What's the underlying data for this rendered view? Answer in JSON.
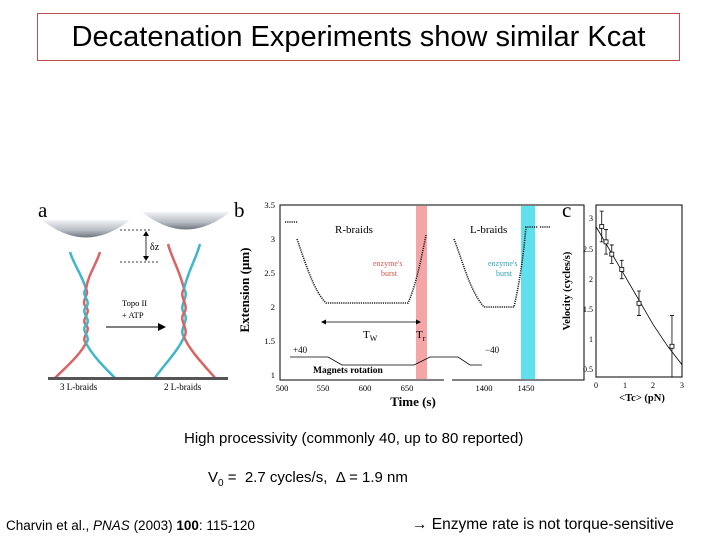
{
  "slide": {
    "title": "Decatenation Experiments show similar Kcat",
    "processivity": "High processivity (commonly 40, up to 80 reported)",
    "v_symbol": "V",
    "v_sub": "0",
    "v_value": " =  2.7 cycles/s,  ",
    "delta_symbol": "Δ",
    "delta_value": " = 1.9 nm",
    "citation_authors": "Charvin et al., ",
    "citation_journal": "PNAS",
    "citation_year": " (2003) ",
    "citation_volume": "100",
    "citation_pages": ": 115-120",
    "conclusion_arrow": "→",
    "conclusion_text": " Enzyme rate is not torque-sensitive"
  },
  "figure": {
    "panel_a": {
      "label": "a",
      "dz_label": "δz",
      "topo_label": "Topo II",
      "atp_label": "+ ATP",
      "left_braid_label": "3 L-braids",
      "right_braid_label": "2 L-braids",
      "colors": {
        "strand_red": "#d96464",
        "strand_blue": "#3fb7c9",
        "bead": "#8a8f99"
      }
    },
    "panel_b": {
      "label": "b",
      "ylabel": "Extension (μm)",
      "xlabel": "Time (s)",
      "yticks": [
        "3.5",
        "3",
        "2.5",
        "2",
        "1.5",
        "1"
      ],
      "xticks": [
        "500",
        "550",
        "600",
        "650",
        "1400",
        "1450"
      ],
      "r_braids": "R-braids",
      "l_braids": "L-braids",
      "burst_r": [
        "enzyme's",
        "burst"
      ],
      "burst_l": [
        "enzyme's",
        "burst"
      ],
      "tw": "T",
      "tw_sub": "W",
      "tr": "T",
      "tr_sub": "r",
      "plus40": "+40",
      "minus40": "−40",
      "magnets": "Magnets rotation",
      "colors": {
        "burst_red": "#f4a5a5",
        "burst_cyan": "#5ee0ee"
      }
    },
    "panel_c": {
      "label": "c",
      "ylabel": "Velocity (cycles/s)",
      "xlabel": "<Tc> (pN)",
      "yticks": [
        "3",
        "2.5",
        "2",
        "1.5",
        "1",
        "0.5"
      ],
      "xticks": [
        "0",
        "1",
        "2",
        "3"
      ]
    }
  },
  "chart_data": {
    "type": "scatter",
    "title": "",
    "xlabel": "<Tc> (pN)",
    "ylabel": "Velocity (cycles/s)",
    "xlim": [
      0,
      3
    ],
    "ylim": [
      0.3,
      3.1
    ],
    "grid": false,
    "series": [
      {
        "x": [
          0.2,
          0.35,
          0.55,
          0.9,
          1.5,
          2.65
        ],
        "y": [
          2.75,
          2.5,
          2.3,
          2.05,
          1.5,
          0.8
        ],
        "error": [
          0.25,
          0.2,
          0.15,
          0.15,
          0.2,
          0.5
        ]
      }
    ],
    "fit": {
      "x": [
        0,
        0.5,
        1,
        1.5,
        2,
        2.5,
        3
      ],
      "y": [
        2.75,
        2.35,
        1.95,
        1.55,
        1.15,
        0.8,
        0.5
      ]
    }
  }
}
